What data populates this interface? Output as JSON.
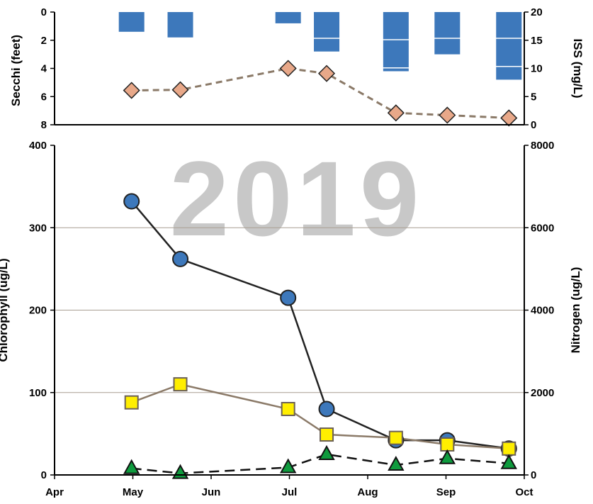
{
  "chart_data": [
    {
      "type": "bar+line",
      "secchi_axis": {
        "label": "Secchi (feet)",
        "range": [
          0,
          8
        ],
        "ticks": [
          "0",
          "2",
          "4",
          "6",
          "8"
        ],
        "inverted": true
      },
      "iss_axis": {
        "label": "ISS (mg/L)",
        "range": [
          0,
          20
        ],
        "ticks": [
          "0",
          "5",
          "10",
          "15",
          "20"
        ]
      },
      "secchi_bars": [
        {
          "date": "2019-05-01",
          "segments": [
            1.4
          ]
        },
        {
          "date": "2019-05-20",
          "segments": [
            1.8
          ]
        },
        {
          "date": "2019-07-01",
          "segments": [
            0.8
          ]
        },
        {
          "date": "2019-07-16",
          "segments": [
            1.9,
            0.9
          ]
        },
        {
          "date": "2019-08-12",
          "segments": [
            2.0,
            2.0,
            0.2
          ]
        },
        {
          "date": "2019-09-01",
          "segments": [
            1.9,
            1.1
          ]
        },
        {
          "date": "2019-09-25",
          "segments": [
            1.9,
            2.0,
            0.9
          ]
        }
      ],
      "iss_series": {
        "dates": [
          "2019-05-01",
          "2019-05-20",
          "2019-07-01",
          "2019-07-16",
          "2019-08-12",
          "2019-09-01",
          "2019-09-25"
        ],
        "values": [
          6.1,
          6.2,
          10.0,
          9.1,
          2.1,
          1.7,
          1.2
        ]
      },
      "colors": {
        "secchi": "#3d78bb",
        "iss": "#e8a889",
        "iss_line": "#8b7a68"
      },
      "grid": false
    },
    {
      "type": "line",
      "watermark": "2019",
      "x_ticks": [
        "Apr",
        "May",
        "Jun",
        "Jul",
        "Aug",
        "Sep",
        "Oct"
      ],
      "x_range": [
        "2019-04-01",
        "2019-10-01"
      ],
      "chl_axis": {
        "label": "Chlorophyll (ug/L)",
        "range": [
          0,
          400
        ],
        "ticks": [
          "0",
          "100",
          "200",
          "300",
          "400"
        ]
      },
      "n_axis": {
        "label": "Nitrogen (ug/L)",
        "range": [
          0,
          8000
        ],
        "ticks": [
          "0",
          "2000",
          "4000",
          "6000",
          "8000"
        ]
      },
      "grid": true,
      "series": [
        {
          "axis": "chl",
          "marker": "circle",
          "color": "#3d78bb",
          "line": "#222222",
          "dash": false,
          "dates": [
            "2019-05-01",
            "2019-05-20",
            "2019-07-01",
            "2019-07-16",
            "2019-08-12",
            "2019-09-01",
            "2019-09-25"
          ],
          "values": [
            332,
            262,
            215,
            80,
            42,
            42,
            32
          ]
        },
        {
          "axis": "chl",
          "marker": "square",
          "color": "#ffee00",
          "line": "#8b7a68",
          "dash": false,
          "dates": [
            "2019-05-01",
            "2019-05-20",
            "2019-07-01",
            "2019-07-16",
            "2019-08-12",
            "2019-09-01",
            "2019-09-25"
          ],
          "values": [
            88,
            110,
            80,
            49,
            45,
            37,
            32
          ]
        },
        {
          "axis": "chl",
          "marker": "triangle",
          "color": "#0f9b3e",
          "line": "#111111",
          "dash": true,
          "dates": [
            "2019-05-01",
            "2019-05-20",
            "2019-07-01",
            "2019-07-16",
            "2019-08-12",
            "2019-09-01",
            "2019-09-25"
          ],
          "values": [
            8,
            2,
            9,
            25,
            12,
            20,
            14
          ]
        }
      ]
    }
  ]
}
